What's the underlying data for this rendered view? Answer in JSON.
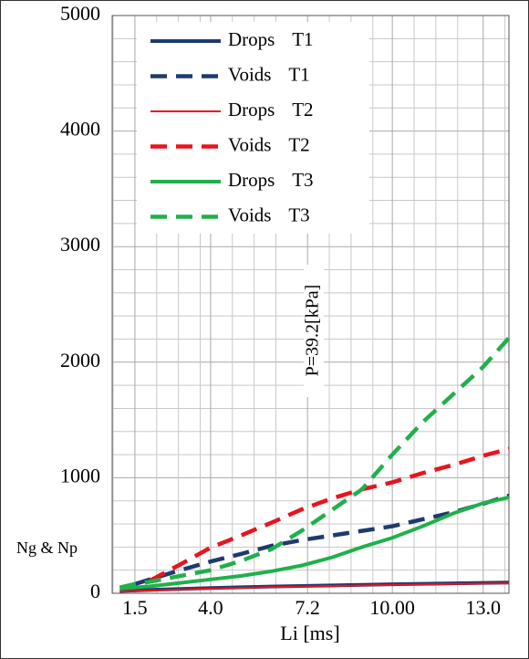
{
  "chart_data": {
    "type": "line",
    "x_label": "Li [ms]",
    "y_label": "Ng & Np",
    "annotation": "P=39.2[kPa]",
    "x": [
      1,
      1.5,
      2,
      3,
      4,
      5,
      6,
      7,
      8,
      9,
      10,
      11,
      12,
      13,
      13.85
    ],
    "series": [
      {
        "name": "Drops T1",
        "color": "#1f3a6e",
        "line_style": "solid",
        "values": [
          20,
          25,
          30,
          38,
          45,
          52,
          58,
          63,
          68,
          73,
          78,
          82,
          86,
          90,
          93
        ]
      },
      {
        "name": "Voids T1",
        "color": "#1f3a6e",
        "line_style": "dashed",
        "values": [
          null,
          80,
          120,
          200,
          275,
          340,
          410,
          460,
          500,
          540,
          580,
          640,
          700,
          775,
          845
        ]
      },
      {
        "name": "Drops T2",
        "color": "#e8141e",
        "line_style": "thin",
        "values": [
          15,
          20,
          25,
          33,
          40,
          47,
          53,
          58,
          63,
          68,
          73,
          77,
          81,
          85,
          88
        ]
      },
      {
        "name": "Voids T2",
        "color": "#e8141e",
        "line_style": "dashed",
        "values": [
          null,
          null,
          110,
          250,
          395,
          500,
          610,
          725,
          820,
          900,
          960,
          1040,
          1110,
          1190,
          1250
        ]
      },
      {
        "name": "Drops T3",
        "color": "#20b04b",
        "line_style": "solid",
        "values": [
          40,
          50,
          60,
          90,
          120,
          150,
          190,
          240,
          310,
          400,
          480,
          580,
          690,
          780,
          830
        ]
      },
      {
        "name": "Voids T3",
        "color": "#20b04b",
        "line_style": "dashed",
        "values": [
          50,
          80,
          100,
          150,
          200,
          280,
          380,
          540,
          720,
          900,
          1200,
          1480,
          1720,
          1960,
          2210
        ]
      }
    ],
    "xlim": [
      0.75,
      13.85
    ],
    "xticks": [
      1.5,
      {
        "value": 4,
        "label": "4.0"
      },
      7.2,
      {
        "value": 10,
        "label": "10.00"
      },
      {
        "value": 13,
        "label": "13.0"
      }
    ],
    "ylim": [
      0,
      5000
    ],
    "yticks": [
      0,
      1000,
      2000,
      3000,
      4000,
      5000
    ],
    "grid": true,
    "minor_grid": true,
    "legend": "upper left"
  }
}
